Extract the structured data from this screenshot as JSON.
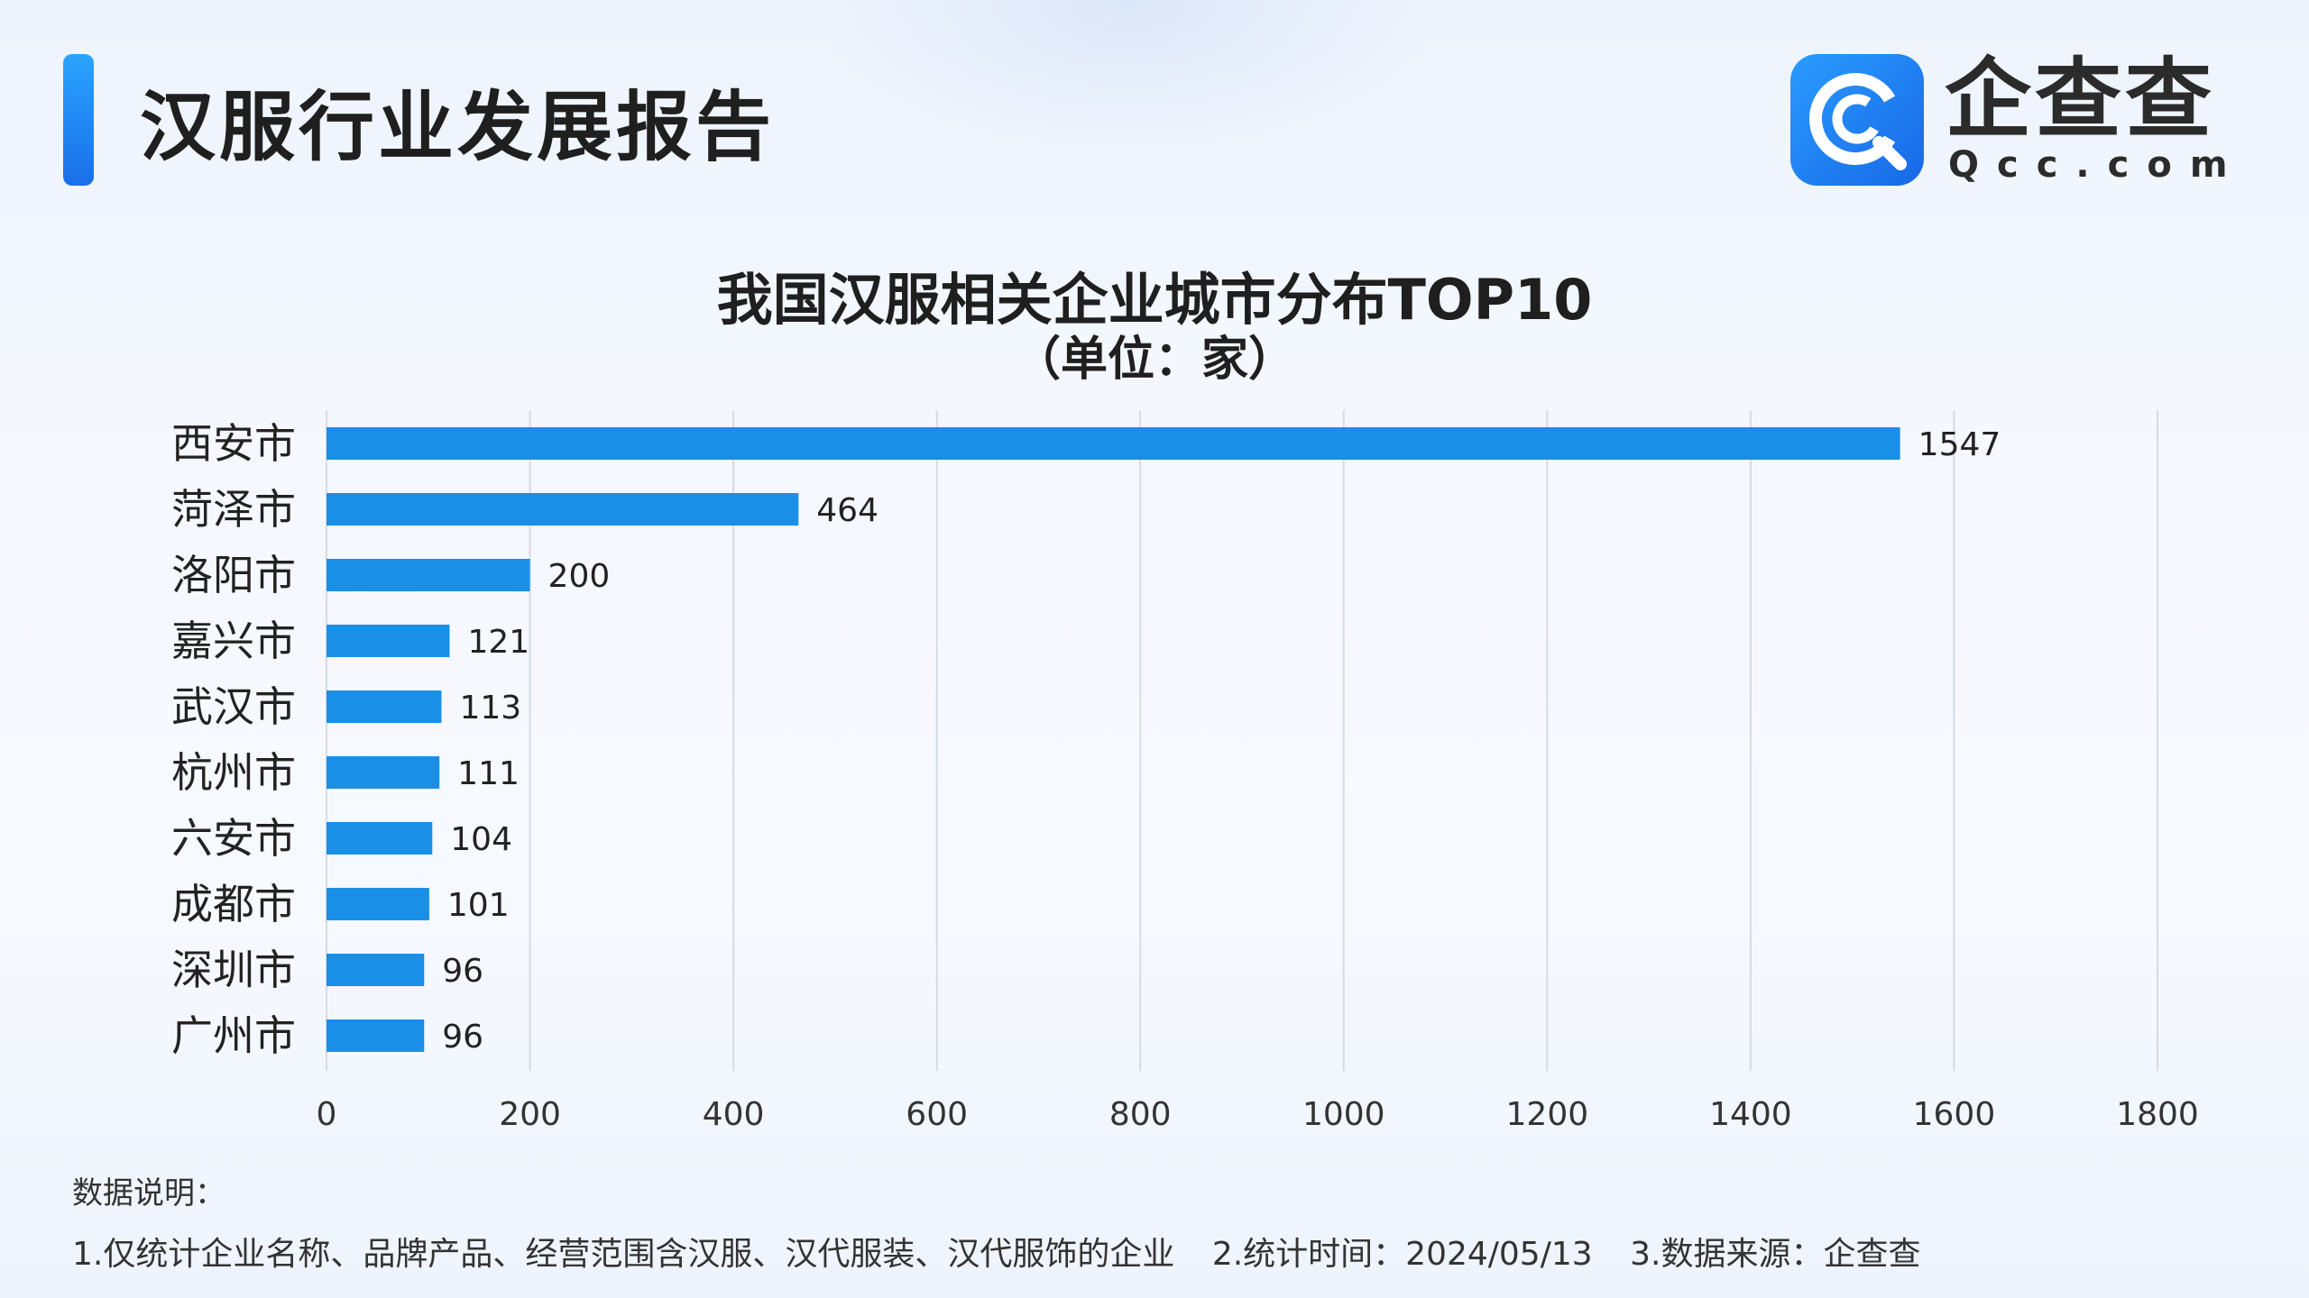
{
  "header": {
    "title": "汉服行业发展报告",
    "logo_cn": "企查查",
    "logo_en": "Qcc.com"
  },
  "colors": {
    "accent": "#1a8fe8",
    "bar": "#1a8fe8",
    "grid": "#d6dbe4",
    "text": "#222222"
  },
  "chart_data": {
    "type": "bar",
    "orientation": "horizontal",
    "title": "我国汉服相关企业城市分布TOP10",
    "subtitle": "（单位：家）",
    "categories": [
      "西安市",
      "菏泽市",
      "洛阳市",
      "嘉兴市",
      "武汉市",
      "杭州市",
      "六安市",
      "成都市",
      "深圳市",
      "广州市"
    ],
    "values": [
      1547,
      464,
      200,
      121,
      113,
      111,
      104,
      101,
      96,
      96
    ],
    "xlim": [
      0,
      1800
    ],
    "xticks": [
      0,
      200,
      400,
      600,
      800,
      1000,
      1200,
      1400,
      1600,
      1800
    ],
    "grid": "vertical",
    "data_labels": true,
    "legend": "none"
  },
  "notes": {
    "heading": "数据说明：",
    "items": [
      "1.仅统计企业名称、品牌产品、经营范围含汉服、汉代服装、汉代服饰的企业",
      "2.统计时间：2024/05/13",
      "3.数据来源：企查查"
    ]
  }
}
